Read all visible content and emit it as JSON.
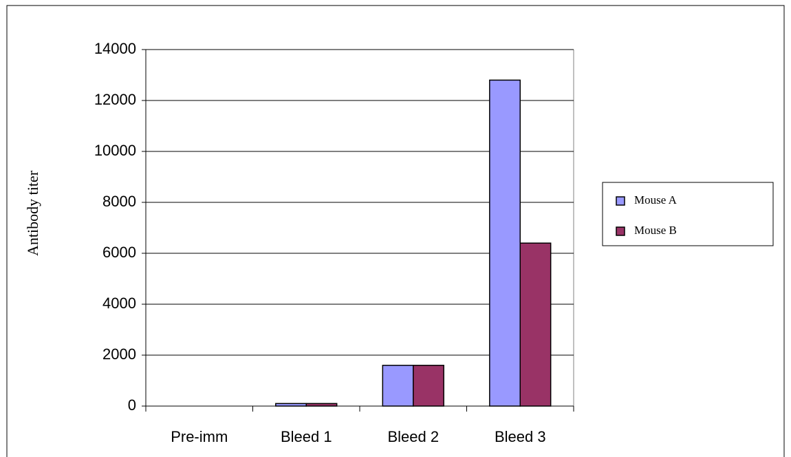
{
  "chart_data": {
    "type": "bar",
    "ylabel": "Antibody titer",
    "categories": [
      "Pre-imm",
      "Bleed 1",
      "Bleed 2",
      "Bleed 3"
    ],
    "series": [
      {
        "name": "Mouse A",
        "color": "#9999ff",
        "values": [
          0,
          100,
          1600,
          12800
        ]
      },
      {
        "name": "Mouse B",
        "color": "#993366",
        "values": [
          0,
          100,
          1600,
          6400
        ]
      }
    ],
    "ylim": [
      0,
      14000
    ],
    "yticks": [
      0,
      2000,
      4000,
      6000,
      8000,
      10000,
      12000,
      14000
    ],
    "grid": true,
    "legend": "right"
  }
}
